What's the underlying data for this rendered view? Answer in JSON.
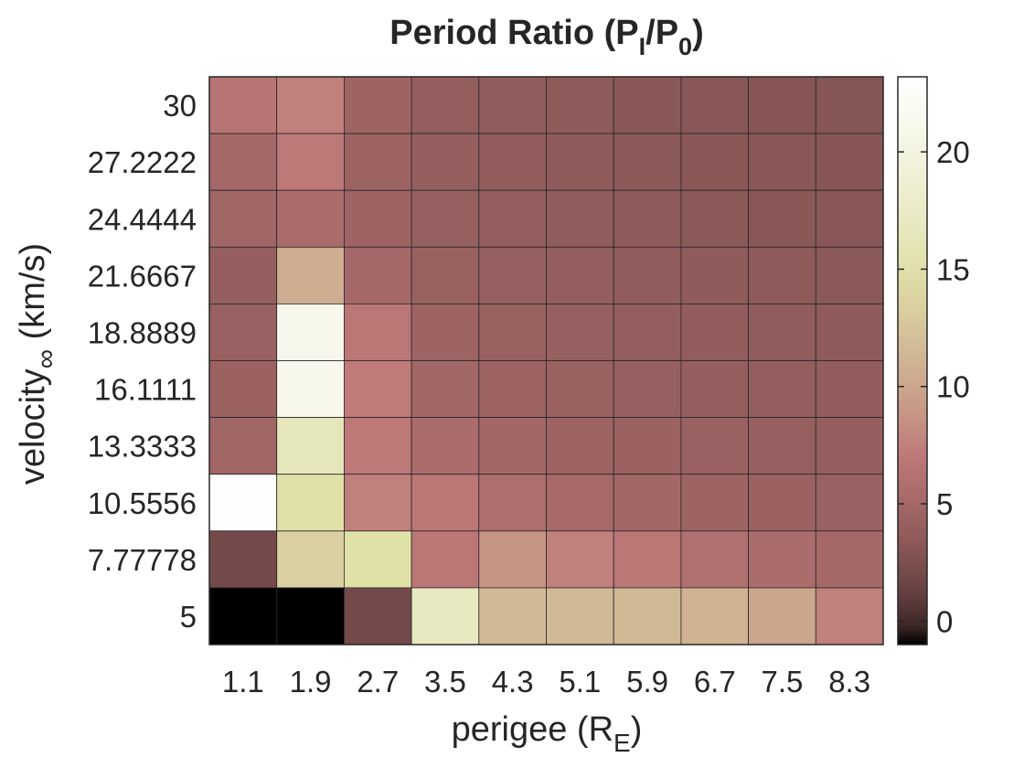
{
  "chart_data": {
    "type": "heatmap",
    "title": "Period Ratio (P",
    "title_sub1": "I",
    "title_mid": "/P",
    "title_sub2": "0",
    "title_end": ")",
    "xlabel": "perigee (R",
    "xlabel_sub": "E",
    "xlabel_end": ")",
    "ylabel": "velocity",
    "ylabel_sub": "∞",
    "ylabel_end": " (km/s)",
    "x": [
      "1.1",
      "1.9",
      "2.7",
      "3.5",
      "4.3",
      "5.1",
      "5.9",
      "6.7",
      "7.5",
      "8.3"
    ],
    "y": [
      "30",
      "27.2222",
      "24.4444",
      "21.6667",
      "18.8889",
      "16.1111",
      "13.3333",
      "10.5556",
      "7.77778",
      "5"
    ],
    "z": [
      [
        6.5,
        7.5,
        4.6,
        3.9,
        3.7,
        3.5,
        3.3,
        3.2,
        3.1,
        3.0
      ],
      [
        5.0,
        7.0,
        4.5,
        4.0,
        3.8,
        3.6,
        3.4,
        3.3,
        3.2,
        3.1
      ],
      [
        4.8,
        5.5,
        4.6,
        4.1,
        3.9,
        3.7,
        3.5,
        3.4,
        3.3,
        3.2
      ],
      [
        4.0,
        10.5,
        5.0,
        4.3,
        4.1,
        3.9,
        3.7,
        3.6,
        3.5,
        3.4
      ],
      [
        4.2,
        21.0,
        6.8,
        4.6,
        4.3,
        4.1,
        3.9,
        3.8,
        3.7,
        3.6
      ],
      [
        4.4,
        21.0,
        7.2,
        4.8,
        4.5,
        4.3,
        4.1,
        4.0,
        3.9,
        3.8
      ],
      [
        4.8,
        16.5,
        7.0,
        5.5,
        4.9,
        4.6,
        4.4,
        4.2,
        4.1,
        4.0
      ],
      [
        23.0,
        15.0,
        7.5,
        6.8,
        5.8,
        5.2,
        4.9,
        4.6,
        4.4,
        4.2
      ],
      [
        2.0,
        13.5,
        15.0,
        6.8,
        8.8,
        7.5,
        6.8,
        6.0,
        5.5,
        5.0
      ],
      [
        -1.0,
        -1.0,
        2.0,
        17.0,
        11.5,
        11.5,
        11.5,
        11.0,
        10.0,
        7.5
      ]
    ],
    "colorbar": {
      "min": -1,
      "max": 23.2,
      "ticks": [
        "0",
        "5",
        "10",
        "15",
        "20"
      ],
      "colormap": "pink"
    }
  }
}
